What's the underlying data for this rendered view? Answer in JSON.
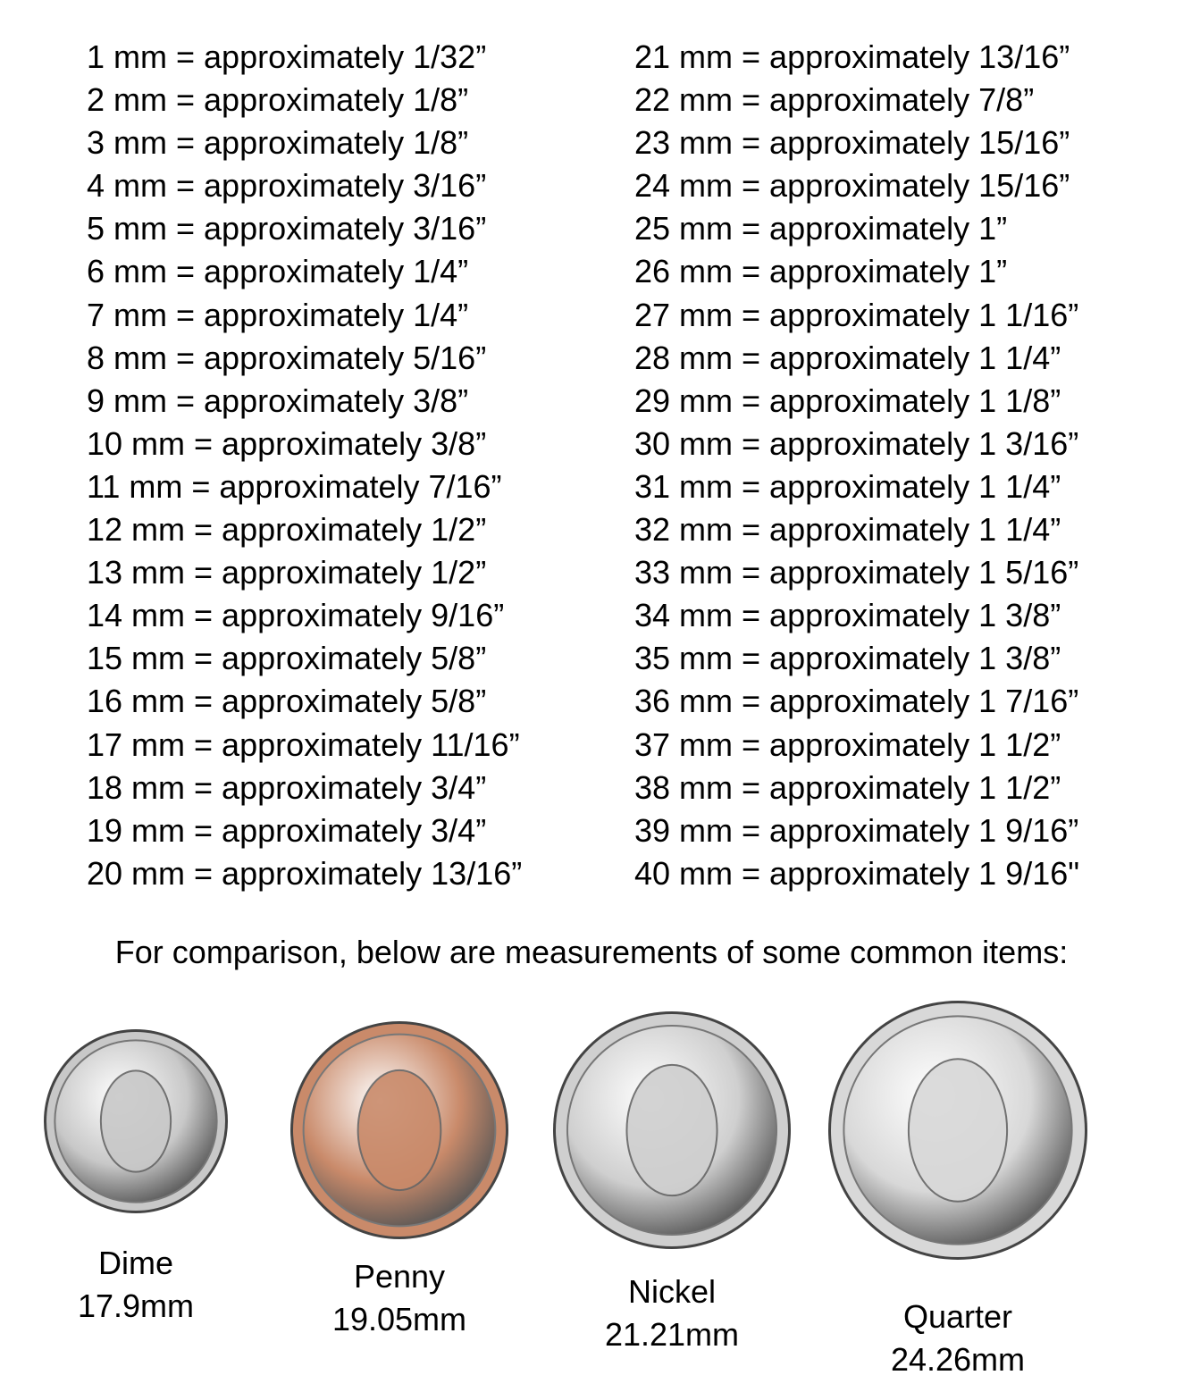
{
  "conversions_left": [
    "1 mm = approximately 1/32”",
    "2 mm = approximately 1/8”",
    "3 mm = approximately 1/8”",
    "4 mm = approximately 3/16”",
    "5 mm = approximately 3/16”",
    "6 mm = approximately 1/4”",
    "7 mm = approximately 1/4”",
    "8 mm = approximately 5/16”",
    "9 mm = approximately 3/8”",
    "10 mm = approximately 3/8”",
    "11 mm = approximately 7/16”",
    "12 mm = approximately 1/2”",
    "13 mm = approximately 1/2”",
    "14 mm = approximately 9/16”",
    "15 mm = approximately 5/8”",
    "16 mm = approximately 5/8”",
    "17 mm = approximately 11/16”",
    "18 mm = approximately 3/4”",
    "19 mm = approximately 3/4”",
    "20 mm = approximately 13/16”"
  ],
  "conversions_right": [
    "21 mm = approximately 13/16”",
    "22 mm = approximately 7/8”",
    "23 mm = approximately 15/16”",
    "24 mm = approximately 15/16”",
    "25 mm = approximately 1”",
    "26 mm = approximately 1”",
    "27 mm = approximately 1 1/16”",
    "28 mm = approximately 1 1/4”",
    "29 mm = approximately 1 1/8”",
    "30 mm = approximately 1 3/16”",
    "31 mm = approximately 1 1/4”",
    "32 mm = approximately 1 1/4”",
    "33 mm = approximately 1 5/16”",
    "34 mm = approximately 1 3/8”",
    "35 mm = approximately 1 3/8”",
    "36 mm = approximately 1 7/16”",
    "37 mm = approximately 1 1/2”",
    "38 mm = approximately 1 1/2”",
    "39 mm = approximately 1 9/16”",
    "40 mm = approximately 1 9/16\""
  ],
  "comparison_intro": "For comparison, below are measurements of some common items:",
  "coins": [
    {
      "name": "Dime",
      "size": "17.9mm",
      "color": "#c8c8c8"
    },
    {
      "name": "Penny",
      "size": "19.05mm",
      "color": "#c98a6a"
    },
    {
      "name": "Nickel",
      "size": "21.21mm",
      "color": "#cfcfcf"
    },
    {
      "name": "Quarter",
      "size": "24.26mm",
      "color": "#d8d8d8"
    }
  ]
}
